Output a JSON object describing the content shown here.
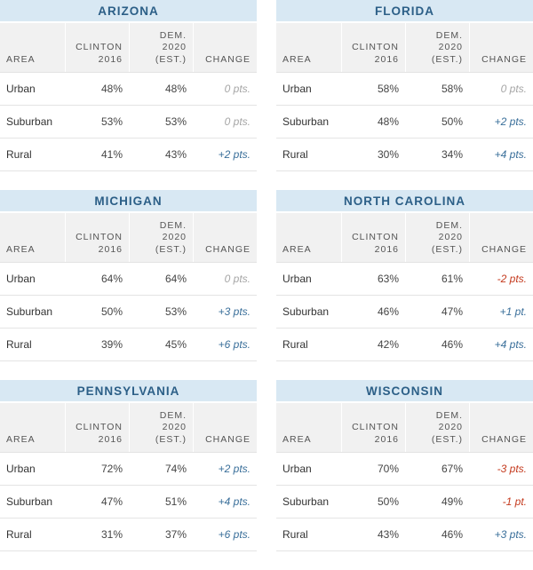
{
  "headers": {
    "area": "AREA",
    "clinton": "CLINTON\n2016",
    "dem": "DEM.\n2020\n(EST.)",
    "change": "CHANGE"
  },
  "states": [
    {
      "name": "ARIZONA",
      "rows": [
        {
          "area": "Urban",
          "clinton": "48%",
          "dem": "48%",
          "change": "0 pts.",
          "direction": "zero"
        },
        {
          "area": "Suburban",
          "clinton": "53%",
          "dem": "53%",
          "change": "0 pts.",
          "direction": "zero"
        },
        {
          "area": "Rural",
          "clinton": "41%",
          "dem": "43%",
          "change": "+2 pts.",
          "direction": "positive"
        }
      ]
    },
    {
      "name": "FLORIDA",
      "rows": [
        {
          "area": "Urban",
          "clinton": "58%",
          "dem": "58%",
          "change": "0 pts.",
          "direction": "zero"
        },
        {
          "area": "Suburban",
          "clinton": "48%",
          "dem": "50%",
          "change": "+2 pts.",
          "direction": "positive"
        },
        {
          "area": "Rural",
          "clinton": "30%",
          "dem": "34%",
          "change": "+4 pts.",
          "direction": "positive"
        }
      ]
    },
    {
      "name": "MICHIGAN",
      "rows": [
        {
          "area": "Urban",
          "clinton": "64%",
          "dem": "64%",
          "change": "0 pts.",
          "direction": "zero"
        },
        {
          "area": "Suburban",
          "clinton": "50%",
          "dem": "53%",
          "change": "+3 pts.",
          "direction": "positive"
        },
        {
          "area": "Rural",
          "clinton": "39%",
          "dem": "45%",
          "change": "+6 pts.",
          "direction": "positive"
        }
      ]
    },
    {
      "name": "NORTH CAROLINA",
      "rows": [
        {
          "area": "Urban",
          "clinton": "63%",
          "dem": "61%",
          "change": "-2 pts.",
          "direction": "negative"
        },
        {
          "area": "Suburban",
          "clinton": "46%",
          "dem": "47%",
          "change": "+1 pt.",
          "direction": "positive"
        },
        {
          "area": "Rural",
          "clinton": "42%",
          "dem": "46%",
          "change": "+4 pts.",
          "direction": "positive"
        }
      ]
    },
    {
      "name": "PENNSYLVANIA",
      "rows": [
        {
          "area": "Urban",
          "clinton": "72%",
          "dem": "74%",
          "change": "+2 pts.",
          "direction": "positive"
        },
        {
          "area": "Suburban",
          "clinton": "47%",
          "dem": "51%",
          "change": "+4 pts.",
          "direction": "positive"
        },
        {
          "area": "Rural",
          "clinton": "31%",
          "dem": "37%",
          "change": "+6 pts.",
          "direction": "positive"
        }
      ]
    },
    {
      "name": "WISCONSIN",
      "rows": [
        {
          "area": "Urban",
          "clinton": "70%",
          "dem": "67%",
          "change": "-3 pts.",
          "direction": "negative"
        },
        {
          "area": "Suburban",
          "clinton": "50%",
          "dem": "49%",
          "change": "-1 pt.",
          "direction": "negative"
        },
        {
          "area": "Rural",
          "clinton": "43%",
          "dem": "46%",
          "change": "+3 pts.",
          "direction": "positive"
        }
      ]
    }
  ],
  "colors": {
    "title_bg": "#d8e8f3",
    "title_text": "#2c5f87",
    "positive": "#3a6f9a",
    "negative": "#c43a1e",
    "zero": "#a6a6a6"
  }
}
